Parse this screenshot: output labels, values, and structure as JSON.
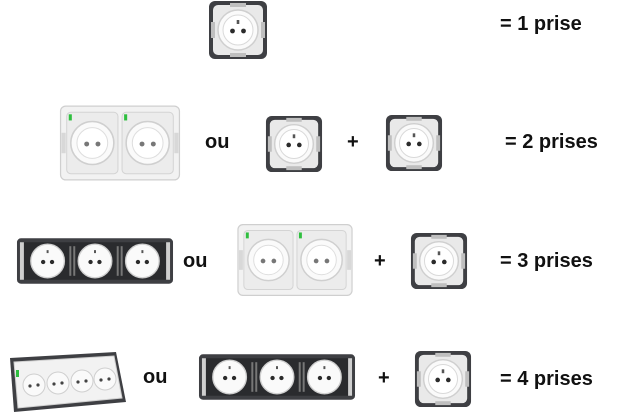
{
  "rows": [
    {
      "result": "= 1 prise"
    },
    {
      "or": "ou",
      "plus": "+",
      "result": "= 2 prises"
    },
    {
      "or": "ou",
      "plus": "+",
      "result": "= 3 prises"
    },
    {
      "or": "ou",
      "plus": "+",
      "result": "= 4 prises"
    }
  ],
  "colors": {
    "frame_dark": "#3e3f43",
    "frame_white": "#f2f2f2",
    "socket_face": "#fafafa",
    "socket_rim": "#cfcfcf",
    "screw": "#9a9a9a",
    "accent_green": "#2fbf3f"
  },
  "icons": [
    "single-socket-icon",
    "double-socket-white-icon",
    "triple-socket-plate-icon",
    "quad-socket-plate-icon"
  ]
}
